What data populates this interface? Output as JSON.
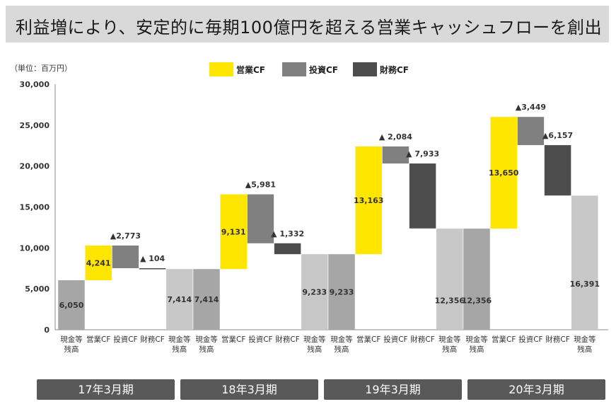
{
  "title": "利益増により、安定的に毎期100億円を超える営業キャッシュフローを創出",
  "unit_label": "（単位：百万円）",
  "legend": [
    {
      "label": "営業CF",
      "color": "#ffe600"
    },
    {
      "label": "投資CF",
      "color": "#808080"
    },
    {
      "label": "財務CF",
      "color": "#4d4d4d"
    }
  ],
  "colors": {
    "cash": "#a6a6a6",
    "cash_light": "#c8c8c8",
    "operating": "#ffe600",
    "investing": "#808080",
    "financing": "#4d4d4d"
  },
  "periods": [
    "17年3月期",
    "18年3月期",
    "19年3月期",
    "20年3月期"
  ],
  "chart_data": {
    "type": "bar",
    "subtype": "waterfall",
    "ylim": [
      0,
      30000
    ],
    "yticks": [
      "0",
      "5,000",
      "10,000",
      "15,000",
      "20,000",
      "25,000",
      "30,000"
    ],
    "ytick_values": [
      0,
      5000,
      10000,
      15000,
      20000,
      25000,
      30000
    ],
    "categories": [
      "現金等\n残高",
      "営業CF",
      "投資CF",
      "財務CF",
      "現金等\n残高",
      "現金等\n残高",
      "営業CF",
      "投資CF",
      "財務CF",
      "現金等\n残高",
      "現金等\n残高",
      "営業CF",
      "投資CF",
      "財務CF",
      "現金等\n残高",
      "現金等\n残高",
      "営業CF",
      "投資CF",
      "財務CF",
      "現金等\n残高"
    ],
    "bars": [
      {
        "kind": "cash",
        "low": 0,
        "high": 6050,
        "label": "6,050",
        "label_pos": "inside"
      },
      {
        "kind": "operating",
        "low": 6050,
        "high": 10291,
        "label": "4,241",
        "label_pos": "inside"
      },
      {
        "kind": "investing",
        "low": 7518,
        "high": 10291,
        "label": "▲2,773",
        "label_pos": "above"
      },
      {
        "kind": "financing",
        "low": 7414,
        "high": 7518,
        "label": "▲ 104",
        "label_pos": "above"
      },
      {
        "kind": "cash_light",
        "low": 0,
        "high": 7414,
        "label": "7,414",
        "label_pos": "inside"
      },
      {
        "kind": "cash",
        "low": 0,
        "high": 7414,
        "label": "7,414",
        "label_pos": "inside"
      },
      {
        "kind": "operating",
        "low": 7414,
        "high": 16545,
        "label": "9,131",
        "label_pos": "inside"
      },
      {
        "kind": "investing",
        "low": 10564,
        "high": 16545,
        "label": "▲5,981",
        "label_pos": "above"
      },
      {
        "kind": "financing",
        "low": 9233,
        "high": 10565,
        "label": "▲ 1,332",
        "label_pos": "above"
      },
      {
        "kind": "cash_light",
        "low": 0,
        "high": 9233,
        "label": "9,233",
        "label_pos": "inside"
      },
      {
        "kind": "cash",
        "low": 0,
        "high": 9233,
        "label": "9,233",
        "label_pos": "inside"
      },
      {
        "kind": "operating",
        "low": 9233,
        "high": 22396,
        "label": "13,163",
        "label_pos": "inside"
      },
      {
        "kind": "investing",
        "low": 20312,
        "high": 22396,
        "label": "▲ 2,084",
        "label_pos": "above"
      },
      {
        "kind": "financing",
        "low": 12379,
        "high": 20312,
        "label": "▲ 7,933",
        "label_pos": "above"
      },
      {
        "kind": "cash_light",
        "low": 0,
        "high": 12356,
        "label": "12,356",
        "label_pos": "inside"
      },
      {
        "kind": "cash",
        "low": 0,
        "high": 12356,
        "label": "12,356",
        "label_pos": "inside"
      },
      {
        "kind": "operating",
        "low": 12356,
        "high": 26006,
        "label": "13,650",
        "label_pos": "inside"
      },
      {
        "kind": "investing",
        "low": 22557,
        "high": 26006,
        "label": "▲3,449",
        "label_pos": "above"
      },
      {
        "kind": "financing",
        "low": 16400,
        "high": 22557,
        "label": "▲6,157",
        "label_pos": "above"
      },
      {
        "kind": "cash_light",
        "low": 0,
        "high": 16391,
        "label": "16,391",
        "label_pos": "inside"
      }
    ]
  }
}
